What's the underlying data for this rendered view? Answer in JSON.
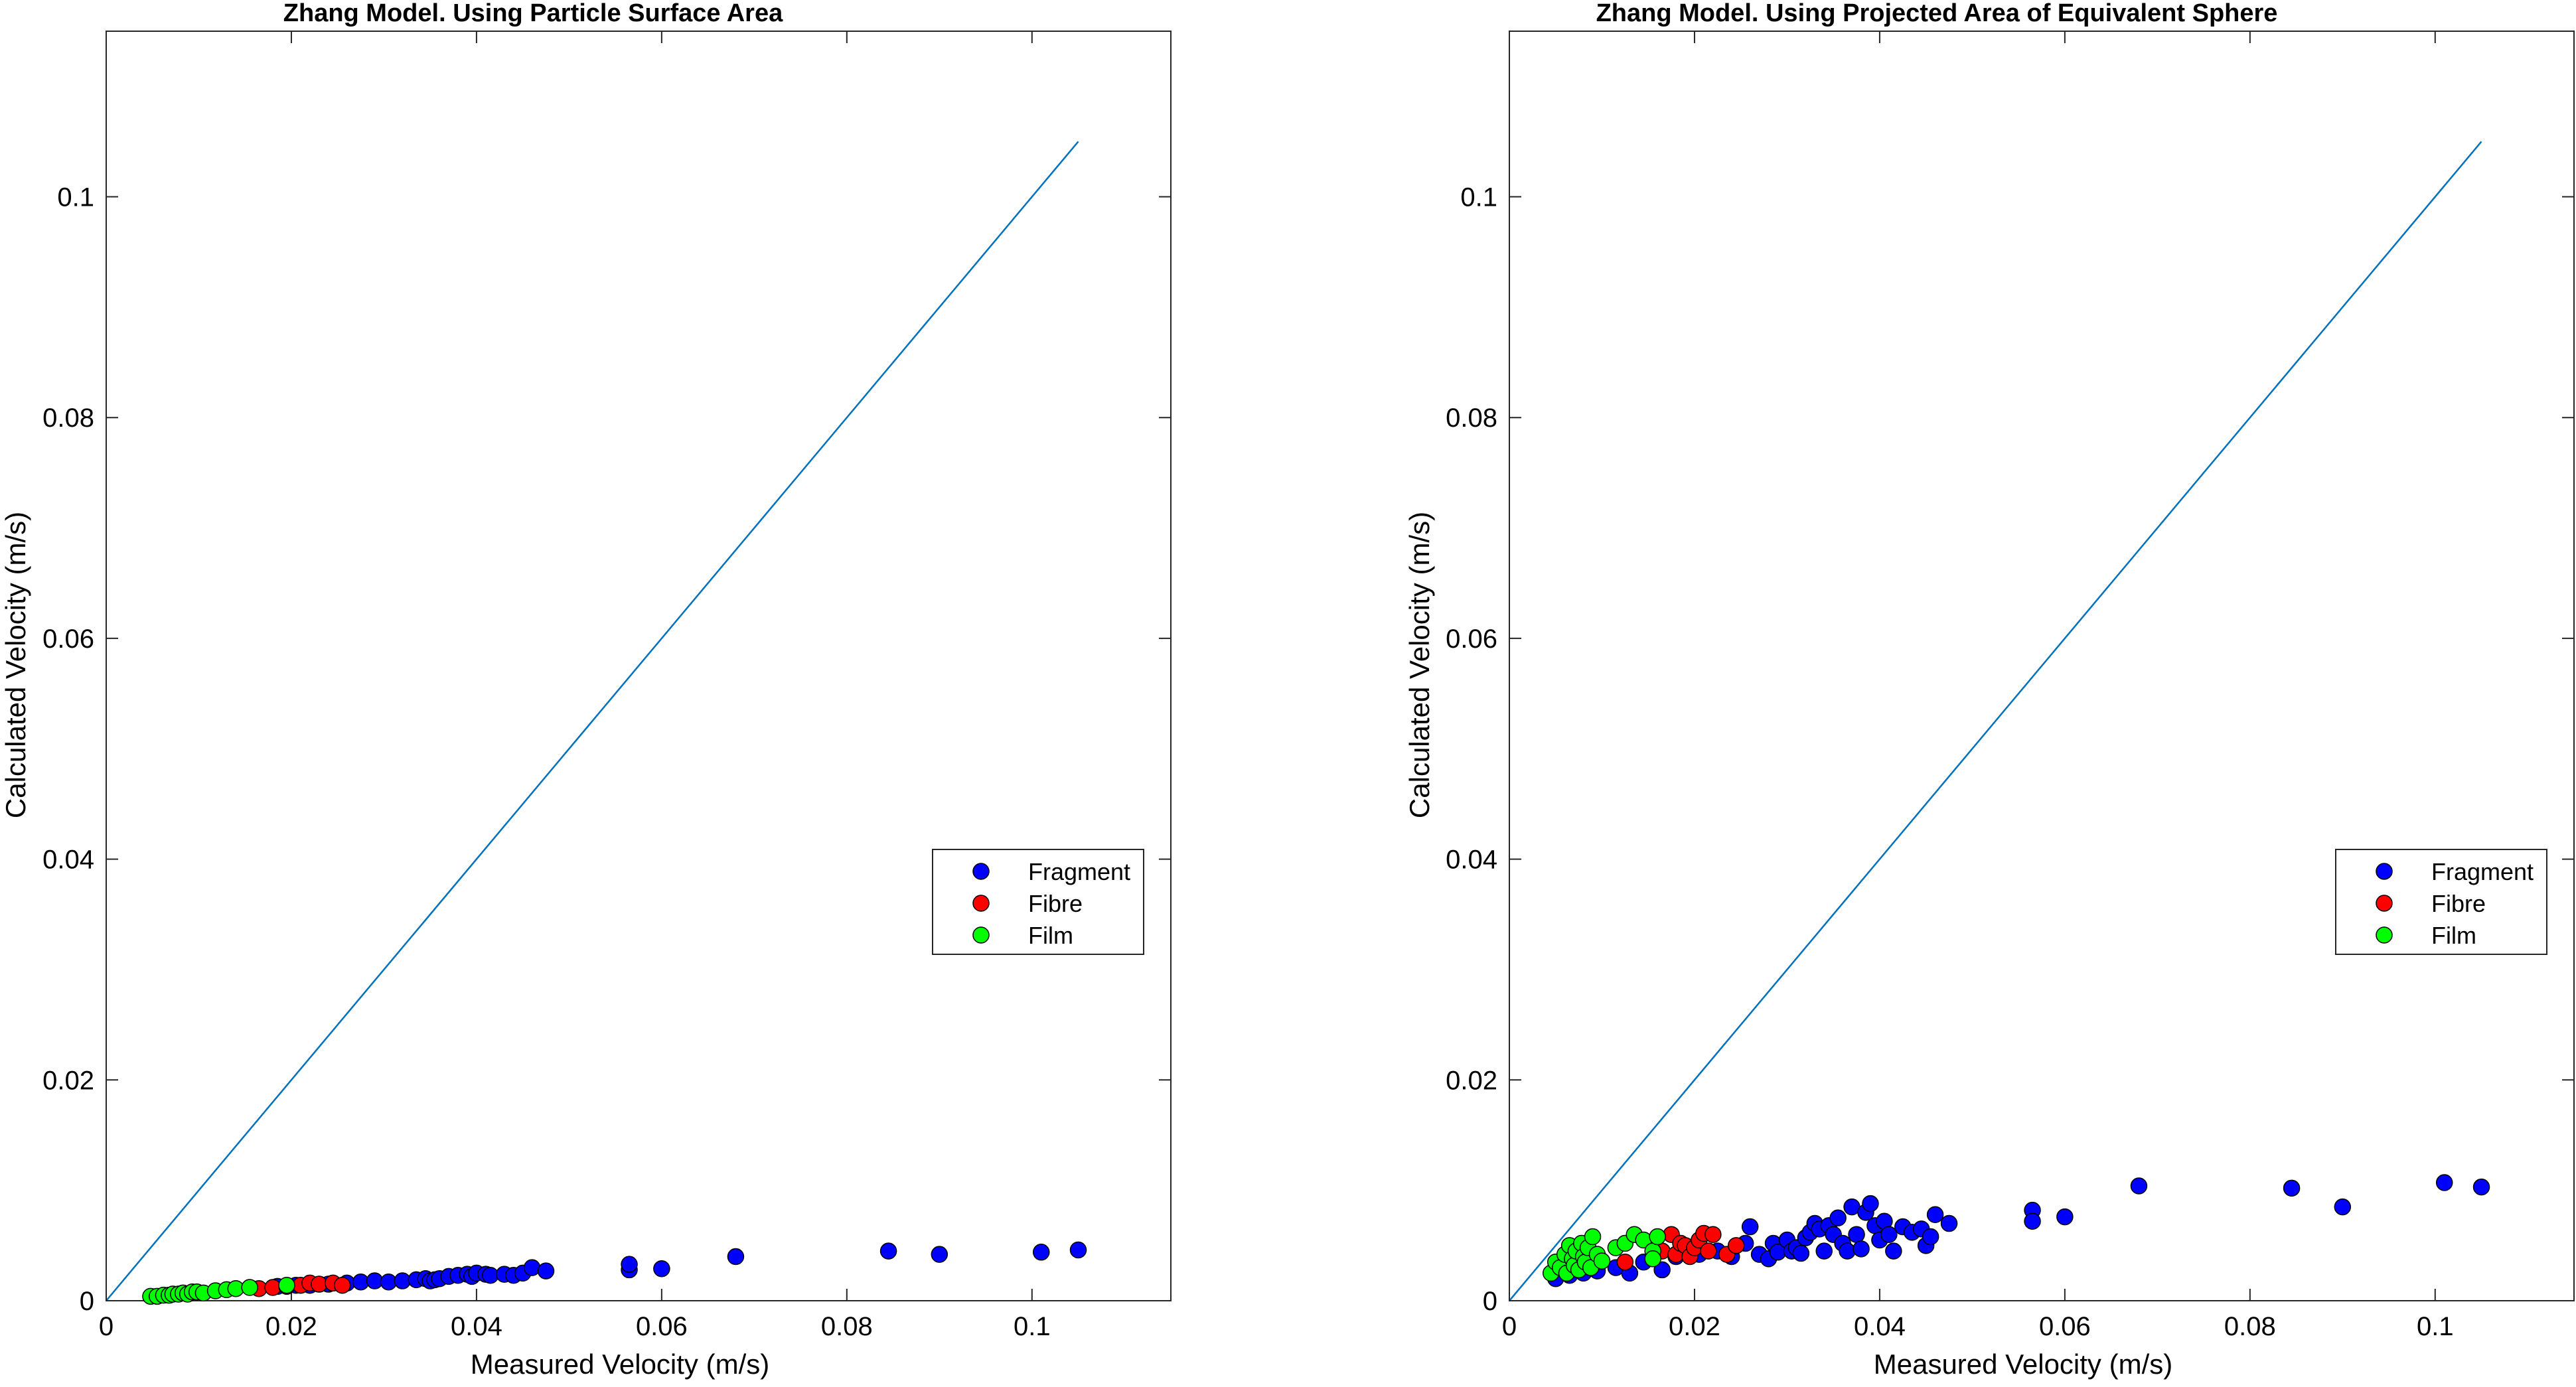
{
  "chart_data": [
    {
      "type": "scatter",
      "title": "Zhang Model. Using Particle Surface Area",
      "xlabel": "Measured Velocity (m/s)",
      "ylabel": "Calculated Velocity (m/s)",
      "xlim": [
        0,
        0.115
      ],
      "ylim": [
        0,
        0.115
      ],
      "xticks": [
        0,
        0.02,
        0.04,
        0.06,
        0.08,
        0.1
      ],
      "xtick_labels": [
        "0",
        "0.02",
        "0.04",
        "0.06",
        "0.08",
        "0.1"
      ],
      "yticks": [
        0,
        0.02,
        0.04,
        0.06,
        0.08,
        0.1
      ],
      "ytick_labels": [
        "0",
        "0.02",
        "0.04",
        "0.06",
        "0.08",
        "0.1"
      ],
      "grid": false,
      "legend_position": "center-right",
      "reference_line": {
        "x": [
          0,
          0.105
        ],
        "y": [
          0,
          0.105
        ],
        "color": "#0072BD"
      },
      "series": [
        {
          "name": "Fragment",
          "color": "#0000FF",
          "points": [
            [
              0.0185,
              0.0013
            ],
            [
              0.0205,
              0.0014
            ],
            [
              0.022,
              0.0014
            ],
            [
              0.024,
              0.0015
            ],
            [
              0.026,
              0.0016
            ],
            [
              0.0275,
              0.0017
            ],
            [
              0.029,
              0.0018
            ],
            [
              0.0305,
              0.0017
            ],
            [
              0.032,
              0.0018
            ],
            [
              0.0335,
              0.0019
            ],
            [
              0.0345,
              0.002
            ],
            [
              0.035,
              0.0018
            ],
            [
              0.0355,
              0.0019
            ],
            [
              0.036,
              0.002
            ],
            [
              0.037,
              0.0022
            ],
            [
              0.038,
              0.0023
            ],
            [
              0.039,
              0.0024
            ],
            [
              0.0395,
              0.0022
            ],
            [
              0.04,
              0.0025
            ],
            [
              0.041,
              0.0024
            ],
            [
              0.0415,
              0.0023
            ],
            [
              0.043,
              0.0024
            ],
            [
              0.044,
              0.0023
            ],
            [
              0.045,
              0.0025
            ],
            [
              0.046,
              0.003
            ],
            [
              0.0475,
              0.0027
            ],
            [
              0.0565,
              0.0028
            ],
            [
              0.0565,
              0.0033
            ],
            [
              0.06,
              0.0029
            ],
            [
              0.068,
              0.004
            ],
            [
              0.0845,
              0.0045
            ],
            [
              0.09,
              0.0042
            ],
            [
              0.101,
              0.0044
            ],
            [
              0.105,
              0.0046
            ]
          ]
        },
        {
          "name": "Fibre",
          "color": "#FF0000",
          "points": [
            [
              0.0165,
              0.0011
            ],
            [
              0.018,
              0.0012
            ],
            [
              0.0195,
              0.0013
            ],
            [
              0.021,
              0.0014
            ],
            [
              0.022,
              0.0016
            ],
            [
              0.023,
              0.0015
            ],
            [
              0.0245,
              0.0016
            ],
            [
              0.0255,
              0.0014
            ]
          ]
        },
        {
          "name": "Film",
          "color": "#00FF00",
          "points": [
            [
              0.0048,
              0.0004
            ],
            [
              0.0055,
              0.0004
            ],
            [
              0.0062,
              0.0005
            ],
            [
              0.0068,
              0.0005
            ],
            [
              0.0072,
              0.0006
            ],
            [
              0.0078,
              0.0006
            ],
            [
              0.0083,
              0.0007
            ],
            [
              0.0088,
              0.0006
            ],
            [
              0.0093,
              0.0008
            ],
            [
              0.0098,
              0.0008
            ],
            [
              0.0105,
              0.0007
            ],
            [
              0.0118,
              0.0009
            ],
            [
              0.013,
              0.001
            ],
            [
              0.014,
              0.0011
            ],
            [
              0.0155,
              0.0012
            ],
            [
              0.0195,
              0.0014
            ]
          ]
        }
      ]
    },
    {
      "type": "scatter",
      "title": "Zhang Model. Using Projected Area of Equivalent Sphere",
      "xlabel": "Measured Velocity (m/s)",
      "ylabel": "Calculated Velocity (m/s)",
      "xlim": [
        0,
        0.115
      ],
      "ylim": [
        0,
        0.115
      ],
      "xticks": [
        0,
        0.02,
        0.04,
        0.06,
        0.08,
        0.1
      ],
      "xtick_labels": [
        "0",
        "0.02",
        "0.04",
        "0.06",
        "0.08",
        "0.1"
      ],
      "yticks": [
        0,
        0.02,
        0.04,
        0.06,
        0.08,
        0.1
      ],
      "ytick_labels": [
        "0",
        "0.02",
        "0.04",
        "0.06",
        "0.08",
        "0.1"
      ],
      "grid": false,
      "legend_position": "center-right",
      "reference_line": {
        "x": [
          0,
          0.105
        ],
        "y": [
          0,
          0.105
        ],
        "color": "#0072BD"
      },
      "series": [
        {
          "name": "Fragment",
          "color": "#0000FF",
          "points": [
            [
              0.005,
              0.002
            ],
            [
              0.0065,
              0.0023
            ],
            [
              0.008,
              0.0025
            ],
            [
              0.0095,
              0.0027
            ],
            [
              0.0115,
              0.003
            ],
            [
              0.013,
              0.0025
            ],
            [
              0.0145,
              0.0035
            ],
            [
              0.0165,
              0.0028
            ],
            [
              0.018,
              0.004
            ],
            [
              0.0205,
              0.0042
            ],
            [
              0.0225,
              0.0045
            ],
            [
              0.024,
              0.004
            ],
            [
              0.0255,
              0.0052
            ],
            [
              0.026,
              0.0067
            ],
            [
              0.027,
              0.0042
            ],
            [
              0.028,
              0.0038
            ],
            [
              0.0285,
              0.0052
            ],
            [
              0.029,
              0.0044
            ],
            [
              0.03,
              0.0055
            ],
            [
              0.0305,
              0.0045
            ],
            [
              0.031,
              0.0048
            ],
            [
              0.0315,
              0.0043
            ],
            [
              0.032,
              0.0057
            ],
            [
              0.0325,
              0.0062
            ],
            [
              0.033,
              0.007
            ],
            [
              0.0335,
              0.0065
            ],
            [
              0.034,
              0.0045
            ],
            [
              0.0345,
              0.0068
            ],
            [
              0.035,
              0.006
            ],
            [
              0.0355,
              0.0075
            ],
            [
              0.036,
              0.0052
            ],
            [
              0.0365,
              0.0045
            ],
            [
              0.037,
              0.0085
            ],
            [
              0.0375,
              0.006
            ],
            [
              0.038,
              0.0047
            ],
            [
              0.0385,
              0.008
            ],
            [
              0.039,
              0.0088
            ],
            [
              0.0395,
              0.0068
            ],
            [
              0.04,
              0.0055
            ],
            [
              0.0405,
              0.0072
            ],
            [
              0.041,
              0.006
            ],
            [
              0.0415,
              0.0045
            ],
            [
              0.0425,
              0.0067
            ],
            [
              0.0435,
              0.0062
            ],
            [
              0.0445,
              0.0065
            ],
            [
              0.045,
              0.005
            ],
            [
              0.0455,
              0.0058
            ],
            [
              0.046,
              0.0078
            ],
            [
              0.0475,
              0.007
            ],
            [
              0.0565,
              0.0082
            ],
            [
              0.0565,
              0.0072
            ],
            [
              0.06,
              0.0076
            ],
            [
              0.068,
              0.0104
            ],
            [
              0.0845,
              0.0102
            ],
            [
              0.09,
              0.0085
            ],
            [
              0.101,
              0.0107
            ],
            [
              0.105,
              0.0103
            ]
          ]
        },
        {
          "name": "Fibre",
          "color": "#FF0000",
          "points": [
            [
              0.0125,
              0.0035
            ],
            [
              0.0165,
              0.0045
            ],
            [
              0.0175,
              0.006
            ],
            [
              0.018,
              0.0042
            ],
            [
              0.0185,
              0.0052
            ],
            [
              0.019,
              0.005
            ],
            [
              0.0195,
              0.004
            ],
            [
              0.02,
              0.0048
            ],
            [
              0.0205,
              0.0055
            ],
            [
              0.021,
              0.0061
            ],
            [
              0.0215,
              0.0045
            ],
            [
              0.022,
              0.006
            ],
            [
              0.0235,
              0.0042
            ],
            [
              0.0245,
              0.005
            ]
          ]
        },
        {
          "name": "Film",
          "color": "#00FF00",
          "points": [
            [
              0.0045,
              0.0025
            ],
            [
              0.005,
              0.0035
            ],
            [
              0.0055,
              0.003
            ],
            [
              0.006,
              0.0042
            ],
            [
              0.0062,
              0.0025
            ],
            [
              0.0065,
              0.005
            ],
            [
              0.0068,
              0.0038
            ],
            [
              0.007,
              0.0032
            ],
            [
              0.0072,
              0.0045
            ],
            [
              0.0075,
              0.0028
            ],
            [
              0.0078,
              0.0052
            ],
            [
              0.008,
              0.004
            ],
            [
              0.0082,
              0.0035
            ],
            [
              0.0085,
              0.0048
            ],
            [
              0.0088,
              0.003
            ],
            [
              0.009,
              0.0058
            ],
            [
              0.0095,
              0.0042
            ],
            [
              0.01,
              0.0036
            ],
            [
              0.0115,
              0.0048
            ],
            [
              0.0125,
              0.0052
            ],
            [
              0.0135,
              0.006
            ],
            [
              0.0145,
              0.0055
            ],
            [
              0.0155,
              0.0045
            ],
            [
              0.0155,
              0.0038
            ],
            [
              0.016,
              0.0058
            ]
          ]
        }
      ]
    }
  ]
}
